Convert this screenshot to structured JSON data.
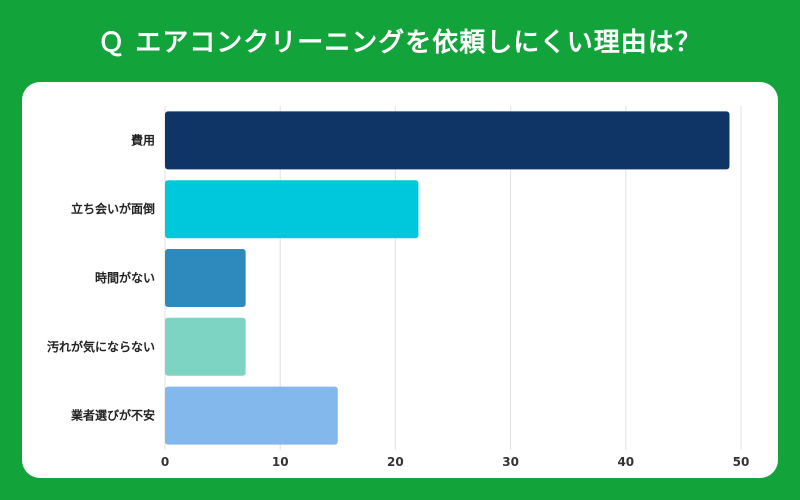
{
  "page": {
    "title": "Ｑ エアコンクリーニングを依頼しにくい理由は？"
  },
  "chart_data": {
    "type": "bar",
    "orientation": "horizontal",
    "title": "Ｑ エアコンクリーニングを依頼しにくい理由は？",
    "categories": [
      "費用",
      "立ち会いが面倒",
      "時間がない",
      "汚れが気にならない",
      "業者選びが不安"
    ],
    "values": [
      49,
      22,
      7,
      7,
      15
    ],
    "colors": [
      "#0f3566",
      "#00c8dc",
      "#2e89bd",
      "#7dd4c3",
      "#82b8ec"
    ],
    "xlim": [
      0,
      50
    ],
    "xticks": [
      0,
      10,
      20,
      30,
      40,
      50
    ],
    "grid": true,
    "legend": "none"
  }
}
